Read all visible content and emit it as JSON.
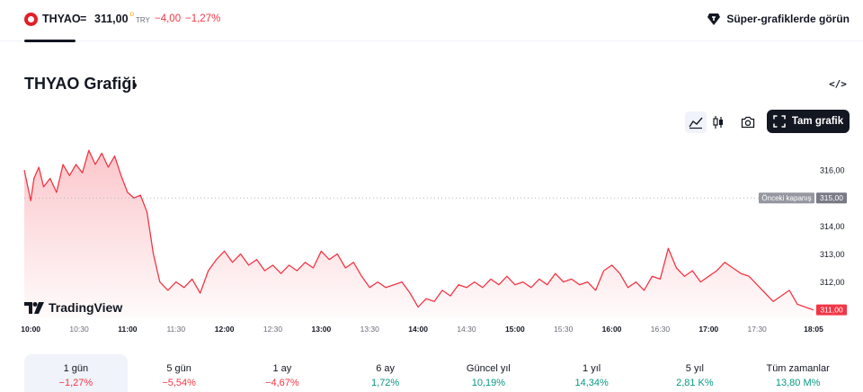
{
  "ticker": {
    "symbol": "THYAO",
    "separator": "=",
    "price": "311,00",
    "flag": "ᴰ",
    "currency": "TRY",
    "change": "−4,00",
    "change_pct": "−1,27%"
  },
  "header": {
    "super_charts_link": "Süper-grafiklerde görün",
    "chart_title": "THYAO Grafiği",
    "chart_title_chevron": "›",
    "embed_label": "</>"
  },
  "toolbar": {
    "full_chart_label": "Tam grafik",
    "icons": [
      "area-chart-icon",
      "candlestick-icon",
      "camera-icon",
      "fullscreen-icon"
    ]
  },
  "chart_data": {
    "type": "area",
    "x": [
      "10:00",
      "10:30",
      "11:00",
      "11:30",
      "12:00",
      "12:30",
      "13:00",
      "13:30",
      "14:00",
      "14:30",
      "15:00",
      "15:30",
      "16:00",
      "16:30",
      "17:00",
      "17:30",
      "18:05"
    ],
    "x_time_range": [
      "09:56",
      "18:05"
    ],
    "y_ticks": [
      "316,00",
      "315,00",
      "314,00",
      "313,00",
      "312,00"
    ],
    "ylim": [
      310.7,
      317.0
    ],
    "prev_close": {
      "label": "Önceki kapanış",
      "value": 315.0,
      "value_label": "315,00"
    },
    "last_price": {
      "value": 311.0,
      "value_label": "311,00"
    },
    "line_color": "#f23645",
    "watermark": "TradingView",
    "series": [
      {
        "points": [
          [
            "09:56",
            316.0
          ],
          [
            "10:00",
            314.9
          ],
          [
            "10:02",
            315.7
          ],
          [
            "10:05",
            316.1
          ],
          [
            "10:08",
            315.4
          ],
          [
            "10:12",
            315.7
          ],
          [
            "10:16",
            315.2
          ],
          [
            "10:20",
            316.2
          ],
          [
            "10:24",
            315.8
          ],
          [
            "10:28",
            316.2
          ],
          [
            "10:32",
            315.9
          ],
          [
            "10:36",
            316.7
          ],
          [
            "10:40",
            316.2
          ],
          [
            "10:44",
            316.6
          ],
          [
            "10:48",
            316.1
          ],
          [
            "10:52",
            316.5
          ],
          [
            "10:56",
            315.8
          ],
          [
            "11:00",
            315.2
          ],
          [
            "11:04",
            315.0
          ],
          [
            "11:08",
            315.1
          ],
          [
            "11:12",
            314.5
          ],
          [
            "11:16",
            313.0
          ],
          [
            "11:20",
            312.0
          ],
          [
            "11:25",
            311.7
          ],
          [
            "11:30",
            312.0
          ],
          [
            "11:35",
            311.8
          ],
          [
            "11:40",
            312.1
          ],
          [
            "11:45",
            311.6
          ],
          [
            "11:50",
            312.4
          ],
          [
            "11:55",
            312.8
          ],
          [
            "12:00",
            313.1
          ],
          [
            "12:05",
            312.7
          ],
          [
            "12:10",
            313.0
          ],
          [
            "12:15",
            312.6
          ],
          [
            "12:20",
            312.8
          ],
          [
            "12:25",
            312.4
          ],
          [
            "12:30",
            312.6
          ],
          [
            "12:35",
            312.3
          ],
          [
            "12:40",
            312.6
          ],
          [
            "12:45",
            312.4
          ],
          [
            "12:50",
            312.7
          ],
          [
            "12:55",
            312.5
          ],
          [
            "13:00",
            313.1
          ],
          [
            "13:05",
            312.8
          ],
          [
            "13:10",
            313.0
          ],
          [
            "13:15",
            312.5
          ],
          [
            "13:20",
            312.7
          ],
          [
            "13:25",
            312.2
          ],
          [
            "13:30",
            311.8
          ],
          [
            "13:35",
            312.0
          ],
          [
            "13:40",
            311.8
          ],
          [
            "13:45",
            311.9
          ],
          [
            "13:50",
            312.0
          ],
          [
            "13:55",
            311.6
          ],
          [
            "14:00",
            311.1
          ],
          [
            "14:05",
            311.4
          ],
          [
            "14:10",
            311.3
          ],
          [
            "14:15",
            311.7
          ],
          [
            "14:20",
            311.5
          ],
          [
            "14:25",
            311.9
          ],
          [
            "14:30",
            311.8
          ],
          [
            "14:35",
            312.0
          ],
          [
            "14:40",
            311.8
          ],
          [
            "14:45",
            312.1
          ],
          [
            "14:50",
            311.9
          ],
          [
            "14:55",
            312.2
          ],
          [
            "15:00",
            311.9
          ],
          [
            "15:05",
            312.0
          ],
          [
            "15:10",
            311.8
          ],
          [
            "15:15",
            312.1
          ],
          [
            "15:20",
            311.9
          ],
          [
            "15:25",
            312.3
          ],
          [
            "15:30",
            312.0
          ],
          [
            "15:35",
            312.1
          ],
          [
            "15:40",
            311.9
          ],
          [
            "15:45",
            312.0
          ],
          [
            "15:50",
            311.7
          ],
          [
            "15:55",
            312.4
          ],
          [
            "16:00",
            312.6
          ],
          [
            "16:05",
            312.3
          ],
          [
            "16:10",
            311.8
          ],
          [
            "16:15",
            312.0
          ],
          [
            "16:20",
            311.7
          ],
          [
            "16:25",
            312.2
          ],
          [
            "16:30",
            312.1
          ],
          [
            "16:35",
            313.2
          ],
          [
            "16:40",
            312.5
          ],
          [
            "16:45",
            312.2
          ],
          [
            "16:50",
            312.4
          ],
          [
            "16:55",
            312.0
          ],
          [
            "17:00",
            312.2
          ],
          [
            "17:05",
            312.4
          ],
          [
            "17:10",
            312.7
          ],
          [
            "17:15",
            312.5
          ],
          [
            "17:20",
            312.3
          ],
          [
            "17:25",
            312.2
          ],
          [
            "17:30",
            311.9
          ],
          [
            "17:35",
            311.6
          ],
          [
            "17:40",
            311.3
          ],
          [
            "17:45",
            311.5
          ],
          [
            "17:50",
            311.7
          ],
          [
            "17:55",
            311.2
          ],
          [
            "18:00",
            311.1
          ],
          [
            "18:05",
            311.0
          ]
        ]
      }
    ]
  },
  "periods": [
    {
      "label": "1 gün",
      "value": "−1,27%",
      "trend": "neg",
      "active": true
    },
    {
      "label": "5 gün",
      "value": "−5,54%",
      "trend": "neg",
      "active": false
    },
    {
      "label": "1 ay",
      "value": "−4,67%",
      "trend": "neg",
      "active": false
    },
    {
      "label": "6 ay",
      "value": "1,72%",
      "trend": "pos",
      "active": false
    },
    {
      "label": "Güncel yıl",
      "value": "10,19%",
      "trend": "pos",
      "active": false
    },
    {
      "label": "1 yıl",
      "value": "14,34%",
      "trend": "pos",
      "active": false
    },
    {
      "label": "5 yıl",
      "value": "2,81 K%",
      "trend": "pos",
      "active": false
    },
    {
      "label": "Tüm zamanlar",
      "value": "13,80 M%",
      "trend": "pos",
      "active": false
    }
  ]
}
